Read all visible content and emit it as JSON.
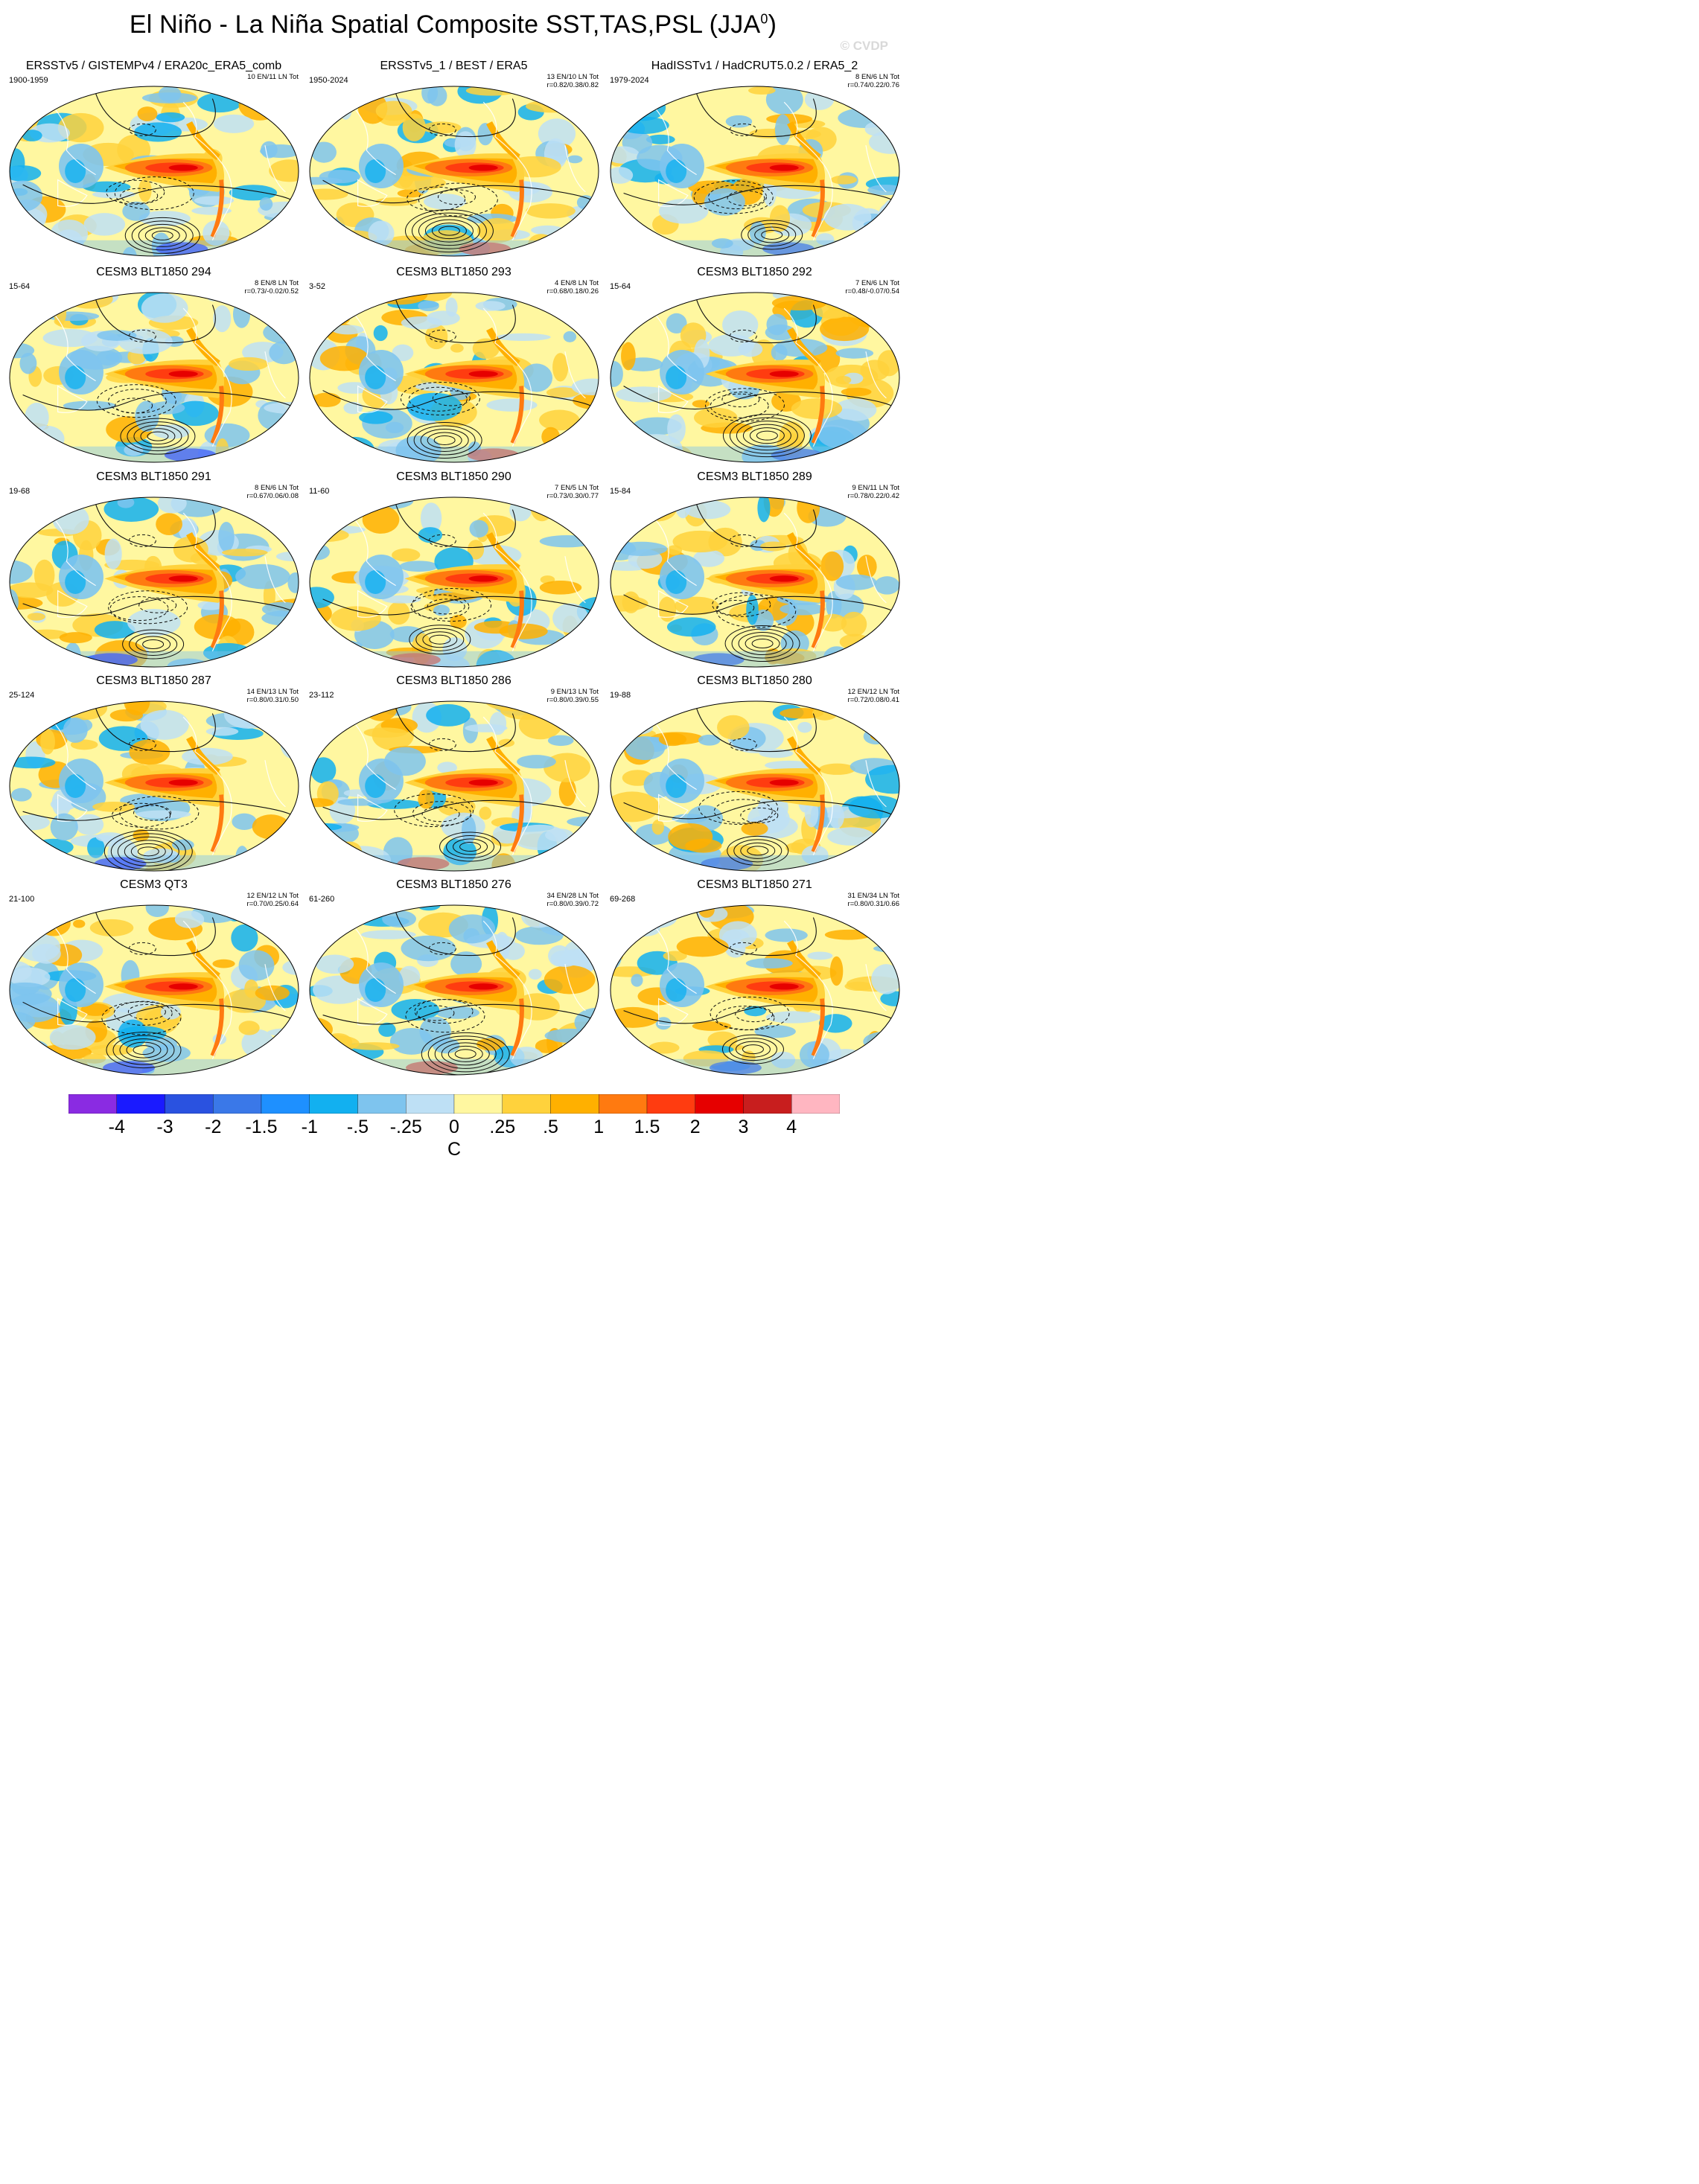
{
  "title": "El Niño - La Niña Spatial Composite SST,TAS,PSL (JJA",
  "title_superscript": "0",
  "title_close": ")",
  "watermark": "© CVDP",
  "panels": [
    {
      "title": "ERSSTv5 / GISTEMPv4 / ERA20c_ERA5_comb",
      "years": "1900-1959",
      "stats1": "10 EN/11 LN Tot",
      "stats2": "",
      "variant": 0
    },
    {
      "title": "ERSSTv5_1 / BEST / ERA5",
      "years": "1950-2024",
      "stats1": "13 EN/10 LN Tot",
      "stats2": "r=0.82/0.38/0.82",
      "variant": 1
    },
    {
      "title": "HadISSTv1 / HadCRUT5.0.2 / ERA5_2",
      "years": "1979-2024",
      "stats1": "8 EN/6 LN Tot",
      "stats2": "r=0.74/0.22/0.76",
      "variant": 2
    },
    {
      "title": "CESM3 BLT1850 294",
      "years": "15-64",
      "stats1": "8 EN/8 LN Tot",
      "stats2": "r=0.73/-0.02/0.52",
      "variant": 3
    },
    {
      "title": "CESM3 BLT1850 293",
      "years": "3-52",
      "stats1": "4 EN/8 LN Tot",
      "stats2": "r=0.68/0.18/0.26",
      "variant": 4
    },
    {
      "title": "CESM3 BLT1850 292",
      "years": "15-64",
      "stats1": "7 EN/6 LN Tot",
      "stats2": "r=0.48/-0.07/0.54",
      "variant": 5
    },
    {
      "title": "CESM3 BLT1850 291",
      "years": "19-68",
      "stats1": "8 EN/6 LN Tot",
      "stats2": "r=0.67/0.06/0.08",
      "variant": 6
    },
    {
      "title": "CESM3 BLT1850 290",
      "years": "11-60",
      "stats1": "7 EN/5 LN Tot",
      "stats2": "r=0.73/0.30/0.77",
      "variant": 7
    },
    {
      "title": "CESM3 BLT1850 289",
      "years": "15-84",
      "stats1": "9 EN/11 LN Tot",
      "stats2": "r=0.78/0.22/0.42",
      "variant": 8
    },
    {
      "title": "CESM3 BLT1850 287",
      "years": "25-124",
      "stats1": "14 EN/13 LN Tot",
      "stats2": "r=0.80/0.31/0.50",
      "variant": 9
    },
    {
      "title": "CESM3 BLT1850 286",
      "years": "23-112",
      "stats1": "9 EN/13 LN Tot",
      "stats2": "r=0.80/0.39/0.55",
      "variant": 10
    },
    {
      "title": "CESM3 BLT1850 280",
      "years": "19-88",
      "stats1": "12 EN/12 LN Tot",
      "stats2": "r=0.72/0.08/0.41",
      "variant": 11
    },
    {
      "title": "CESM3 QT3",
      "years": "21-100",
      "stats1": "12 EN/12 LN Tot",
      "stats2": "r=0.70/0.25/0.64",
      "variant": 12
    },
    {
      "title": "CESM3 BLT1850 276",
      "years": "61-260",
      "stats1": "34 EN/28 LN Tot",
      "stats2": "r=0.80/0.39/0.72",
      "variant": 13
    },
    {
      "title": "CESM3 BLT1850 271",
      "years": "69-268",
      "stats1": "31 EN/34 LN Tot",
      "stats2": "r=0.80/0.31/0.66",
      "variant": 14
    }
  ],
  "colorbar": {
    "colors": [
      "#8a2be2",
      "#1a1aff",
      "#2a52e0",
      "#3a78e8",
      "#1e90ff",
      "#12b0f0",
      "#7ec4ee",
      "#bee0f5",
      "#fff7a0",
      "#ffd23c",
      "#ffb000",
      "#ff7a10",
      "#ff3c10",
      "#e60000",
      "#c81e1e",
      "#ffb6c1"
    ],
    "ticks": [
      "-4",
      "-3",
      "-2",
      "-1.5",
      "-1",
      "-.5",
      "-.25",
      "0",
      ".25",
      ".5",
      "1",
      "1.5",
      "2",
      "3",
      "4"
    ],
    "unit": "C"
  }
}
